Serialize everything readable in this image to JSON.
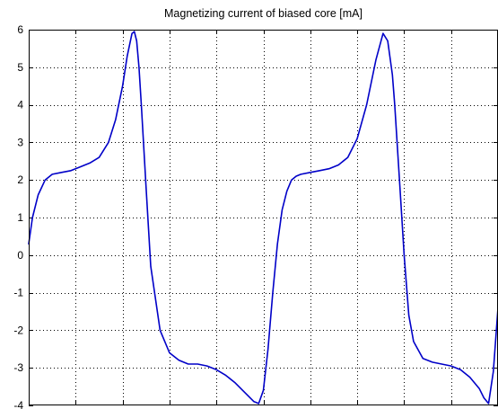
{
  "chart_data": {
    "type": "line",
    "title": "Magnetizing current of biased core [mA]",
    "xlabel": "",
    "ylabel": "",
    "xlim": [
      0,
      1
    ],
    "ylim": [
      -4,
      6
    ],
    "yticks": [
      -4,
      -3,
      -2,
      -1,
      0,
      1,
      2,
      3,
      4,
      5,
      6
    ],
    "ytick_labels": [
      "-4",
      "-3",
      "-2",
      "-1",
      "0",
      "1",
      "2",
      "3",
      "4",
      "5",
      "6"
    ],
    "xticks": [
      0.0,
      0.1,
      0.2,
      0.3,
      0.4,
      0.5,
      0.6,
      0.7,
      0.8,
      0.9,
      1.0
    ],
    "grid": true,
    "legend": "none",
    "series": [
      {
        "color": "#0000c8",
        "x": [
          0.0,
          0.008,
          0.02,
          0.035,
          0.05,
          0.07,
          0.09,
          0.11,
          0.13,
          0.15,
          0.17,
          0.185,
          0.2,
          0.21,
          0.22,
          0.225,
          0.23,
          0.235,
          0.24,
          0.25,
          0.26,
          0.28,
          0.3,
          0.32,
          0.34,
          0.36,
          0.38,
          0.4,
          0.42,
          0.44,
          0.46,
          0.48,
          0.49,
          0.5,
          0.51,
          0.52,
          0.53,
          0.54,
          0.55,
          0.56,
          0.57,
          0.58,
          0.6,
          0.62,
          0.64,
          0.66,
          0.68,
          0.7,
          0.72,
          0.74,
          0.755,
          0.765,
          0.775,
          0.78,
          0.79,
          0.8,
          0.81,
          0.82,
          0.84,
          0.86,
          0.88,
          0.9,
          0.92,
          0.94,
          0.96,
          0.97,
          0.98,
          0.99,
          1.0
        ],
        "y": [
          0.3,
          1.0,
          1.6,
          2.0,
          2.15,
          2.2,
          2.25,
          2.35,
          2.45,
          2.6,
          3.0,
          3.6,
          4.5,
          5.3,
          5.9,
          5.95,
          5.7,
          5.0,
          4.0,
          1.8,
          -0.3,
          -2.0,
          -2.6,
          -2.8,
          -2.9,
          -2.9,
          -2.95,
          -3.05,
          -3.2,
          -3.4,
          -3.65,
          -3.9,
          -3.95,
          -3.6,
          -2.5,
          -1.0,
          0.3,
          1.2,
          1.7,
          2.0,
          2.1,
          2.15,
          2.2,
          2.25,
          2.3,
          2.4,
          2.6,
          3.1,
          4.0,
          5.2,
          5.9,
          5.7,
          4.8,
          4.0,
          2.0,
          0.0,
          -1.6,
          -2.3,
          -2.75,
          -2.85,
          -2.9,
          -2.95,
          -3.05,
          -3.25,
          -3.55,
          -3.8,
          -3.95,
          -3.1,
          -1.4
        ]
      }
    ]
  }
}
